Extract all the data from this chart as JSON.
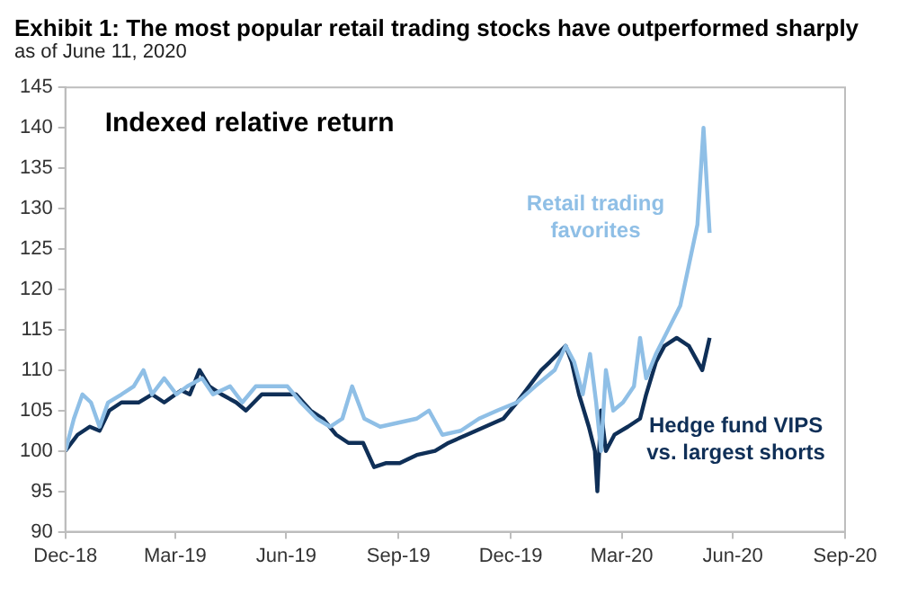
{
  "chart_data": {
    "type": "line",
    "title": "Exhibit 1: The most popular retail trading stocks have outperformed sharply",
    "subtitle": "as of June 11, 2020",
    "annotations": [
      "Indexed relative return"
    ],
    "grid": false,
    "legend": false,
    "marker": "none",
    "line_style": "solid",
    "xlim": [
      "2018-12-31",
      "2020-09-30"
    ],
    "xticks": [
      {
        "value": "2018-12-31",
        "label": "Dec-18"
      },
      {
        "value": "2019-03-31",
        "label": "Mar-19"
      },
      {
        "value": "2019-06-30",
        "label": "Jun-19"
      },
      {
        "value": "2019-09-30",
        "label": "Sep-19"
      },
      {
        "value": "2019-12-31",
        "label": "Dec-19"
      },
      {
        "value": "2020-03-31",
        "label": "Mar-20"
      },
      {
        "value": "2020-06-30",
        "label": "Jun-20"
      },
      {
        "value": "2020-09-30",
        "label": "Sep-20"
      }
    ],
    "ylim": [
      90,
      145
    ],
    "yticks": [
      90,
      95,
      100,
      105,
      110,
      115,
      120,
      125,
      130,
      135,
      140,
      145
    ],
    "series": [
      {
        "name": "Retail trading favorites",
        "color": "#8fbfe6",
        "x": [
          "2018-12-31",
          "2019-01-07",
          "2019-01-14",
          "2019-01-21",
          "2019-01-28",
          "2019-02-04",
          "2019-02-15",
          "2019-02-25",
          "2019-03-05",
          "2019-03-12",
          "2019-03-22",
          "2019-04-01",
          "2019-04-10",
          "2019-04-22",
          "2019-05-01",
          "2019-05-15",
          "2019-05-25",
          "2019-06-05",
          "2019-06-20",
          "2019-07-01",
          "2019-07-12",
          "2019-07-25",
          "2019-08-05",
          "2019-08-15",
          "2019-08-23",
          "2019-09-02",
          "2019-09-15",
          "2019-09-30",
          "2019-10-15",
          "2019-10-25",
          "2019-11-05",
          "2019-11-20",
          "2019-12-05",
          "2019-12-20",
          "2020-01-05",
          "2020-01-20",
          "2020-02-05",
          "2020-02-14",
          "2020-02-21",
          "2020-02-28",
          "2020-03-05",
          "2020-03-10",
          "2020-03-14",
          "2020-03-18",
          "2020-03-24",
          "2020-04-01",
          "2020-04-10",
          "2020-04-15",
          "2020-04-20",
          "2020-04-28",
          "2020-05-08",
          "2020-05-18",
          "2020-05-25",
          "2020-06-01",
          "2020-06-06",
          "2020-06-11"
        ],
        "values": [
          100,
          104,
          107,
          106,
          103,
          106,
          107,
          108,
          110,
          107,
          109,
          107,
          108,
          109,
          107,
          108,
          106,
          108,
          108,
          108,
          106,
          104,
          103,
          104,
          108,
          104,
          103,
          103.5,
          104,
          105,
          102,
          102.5,
          104,
          105,
          106,
          108,
          110,
          113,
          111,
          107,
          112,
          106,
          100,
          110,
          105,
          106,
          108,
          114,
          109,
          112,
          115,
          118,
          123,
          128,
          140,
          127
        ]
      },
      {
        "name": "Hedge fund VIPS vs. largest shorts",
        "color": "#0f2f57",
        "x": [
          "2018-12-31",
          "2019-01-10",
          "2019-01-20",
          "2019-01-28",
          "2019-02-05",
          "2019-02-15",
          "2019-03-01",
          "2019-03-12",
          "2019-03-22",
          "2019-04-05",
          "2019-04-12",
          "2019-04-20",
          "2019-04-28",
          "2019-05-08",
          "2019-05-20",
          "2019-05-28",
          "2019-06-10",
          "2019-06-25",
          "2019-07-08",
          "2019-07-20",
          "2019-07-30",
          "2019-08-10",
          "2019-08-20",
          "2019-09-01",
          "2019-09-10",
          "2019-09-20",
          "2019-10-01",
          "2019-10-15",
          "2019-10-30",
          "2019-11-10",
          "2019-11-25",
          "2019-12-10",
          "2019-12-25",
          "2020-01-05",
          "2020-01-15",
          "2020-01-25",
          "2020-02-01",
          "2020-02-14",
          "2020-02-19",
          "2020-02-25",
          "2020-03-04",
          "2020-03-09",
          "2020-03-11",
          "2020-03-14",
          "2020-03-18",
          "2020-03-25",
          "2020-04-05",
          "2020-04-15",
          "2020-04-20",
          "2020-04-28",
          "2020-05-05",
          "2020-05-15",
          "2020-05-25",
          "2020-06-05",
          "2020-06-11"
        ],
        "values": [
          100,
          102,
          103,
          102.5,
          105,
          106,
          106,
          107,
          106,
          107.5,
          107,
          110,
          108,
          107,
          106,
          105,
          107,
          107,
          107,
          105,
          104,
          102,
          101,
          101,
          98,
          98.5,
          98.5,
          99.5,
          100,
          101,
          102,
          103,
          104,
          106,
          108,
          110,
          111,
          113,
          111,
          107,
          103,
          100,
          95,
          105,
          100,
          102,
          103,
          104,
          107,
          111,
          113,
          114,
          113,
          110,
          114
        ]
      }
    ]
  }
}
